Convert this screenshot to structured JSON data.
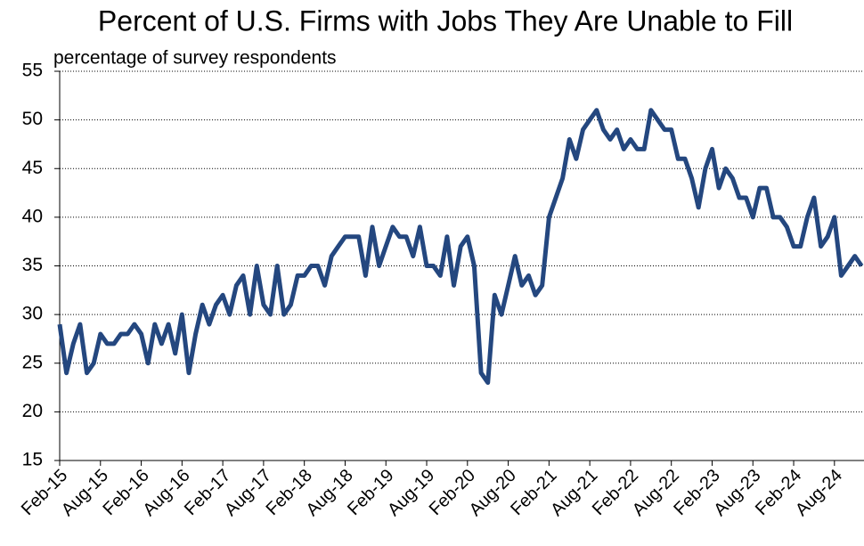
{
  "chart_data": {
    "type": "line",
    "title": "Percent of U.S. Firms with Jobs They Are Unable to Fill",
    "subtitle": "percentage of survey respondents",
    "categories": [
      "Feb-15",
      null,
      null,
      null,
      null,
      null,
      "Aug-15",
      null,
      null,
      null,
      null,
      null,
      "Feb-16",
      null,
      null,
      null,
      null,
      null,
      "Aug-16",
      null,
      null,
      null,
      null,
      null,
      "Feb-17",
      null,
      null,
      null,
      null,
      null,
      "Aug-17",
      null,
      null,
      null,
      null,
      null,
      "Feb-18",
      null,
      null,
      null,
      null,
      null,
      "Aug-18",
      null,
      null,
      null,
      null,
      null,
      "Feb-19",
      null,
      null,
      null,
      null,
      null,
      "Aug-19",
      null,
      null,
      null,
      null,
      null,
      "Feb-20",
      null,
      null,
      null,
      null,
      null,
      "Aug-20",
      null,
      null,
      null,
      null,
      null,
      "Feb-21",
      null,
      null,
      null,
      null,
      null,
      "Aug-21",
      null,
      null,
      null,
      null,
      null,
      "Feb-22",
      null,
      null,
      null,
      null,
      null,
      "Aug-22",
      null,
      null,
      null,
      null,
      null,
      "Feb-23",
      null,
      null,
      null,
      null,
      null,
      "Aug-23",
      null,
      null,
      null,
      null,
      null,
      "Feb-24",
      null,
      null,
      null,
      null,
      null,
      "Aug-24",
      null,
      null,
      null,
      null
    ],
    "series": [
      {
        "color": "#24477f",
        "values": [
          29,
          24,
          27,
          29,
          24,
          25,
          28,
          27,
          27,
          28,
          28,
          29,
          28,
          25,
          29,
          27,
          29,
          26,
          30,
          24,
          28,
          31,
          29,
          31,
          32,
          30,
          33,
          34,
          30,
          35,
          31,
          30,
          35,
          30,
          31,
          34,
          34,
          35,
          35,
          33,
          36,
          37,
          38,
          38,
          38,
          34,
          39,
          35,
          37,
          39,
          38,
          38,
          36,
          39,
          35,
          35,
          34,
          38,
          33,
          37,
          38,
          35,
          24,
          23,
          32,
          30,
          33,
          36,
          33,
          34,
          32,
          33,
          40,
          42,
          44,
          48,
          46,
          49,
          50,
          51,
          49,
          48,
          49,
          47,
          48,
          47,
          47,
          51,
          50,
          49,
          49,
          46,
          46,
          44,
          41,
          45,
          47,
          43,
          45,
          44,
          42,
          42,
          40,
          43,
          43,
          40,
          40,
          39,
          37,
          37,
          40,
          42,
          37,
          38,
          40,
          34,
          35,
          36,
          35
        ]
      }
    ],
    "ylim": [
      15,
      55
    ],
    "yticks": [
      15,
      20,
      25,
      30,
      35,
      40,
      45,
      50,
      55
    ],
    "grid": true
  }
}
